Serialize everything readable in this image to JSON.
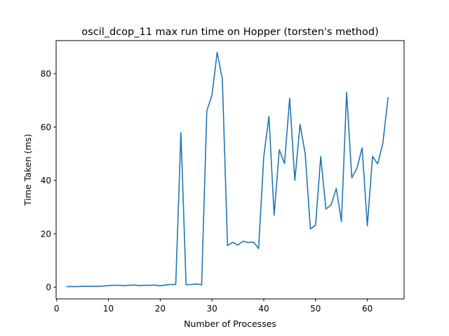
{
  "chart_data": {
    "type": "line",
    "title": "oscil_dcop_11 max run time on Hopper (torsten's method)",
    "xlabel": "Number of Processes",
    "ylabel": "Time Taken (ms)",
    "xlim": [
      -0.1,
      67.1
    ],
    "ylim": [
      -4.4,
      92.4
    ],
    "xticks": [
      0,
      10,
      20,
      30,
      40,
      50,
      60
    ],
    "yticks": [
      0,
      20,
      40,
      60,
      80
    ],
    "grid": false,
    "series": [
      {
        "color": "#1f77b4",
        "x": [
          2,
          3,
          4,
          5,
          6,
          7,
          8,
          9,
          10,
          11,
          12,
          13,
          14,
          15,
          16,
          17,
          18,
          19,
          20,
          21,
          22,
          23,
          24,
          25,
          26,
          27,
          28,
          29,
          30,
          31,
          32,
          33,
          34,
          35,
          36,
          37,
          38,
          39,
          40,
          41,
          42,
          43,
          44,
          45,
          46,
          47,
          48,
          49,
          50,
          51,
          52,
          53,
          54,
          55,
          56,
          57,
          58,
          59,
          60,
          61,
          62,
          63,
          64
        ],
        "y": [
          0.2,
          0.2,
          0.2,
          0.3,
          0.3,
          0.3,
          0.3,
          0.4,
          0.6,
          0.7,
          0.7,
          0.6,
          0.7,
          0.8,
          0.6,
          0.7,
          0.7,
          0.8,
          0.5,
          0.8,
          1.0,
          1.0,
          58.0,
          0.9,
          1.0,
          1.2,
          0.9,
          66.0,
          72.0,
          88.0,
          78.0,
          15.6,
          16.8,
          15.8,
          17.2,
          16.7,
          16.9,
          14.5,
          49.0,
          64.0,
          27.0,
          51.5,
          46.3,
          70.8,
          40.0,
          61.0,
          50.0,
          21.8,
          23.2,
          49.0,
          29.3,
          30.8,
          37.0,
          24.6,
          73.0,
          41.0,
          44.6,
          52.2,
          23.0,
          49.0,
          46.2,
          54.0,
          71.0
        ]
      }
    ]
  }
}
